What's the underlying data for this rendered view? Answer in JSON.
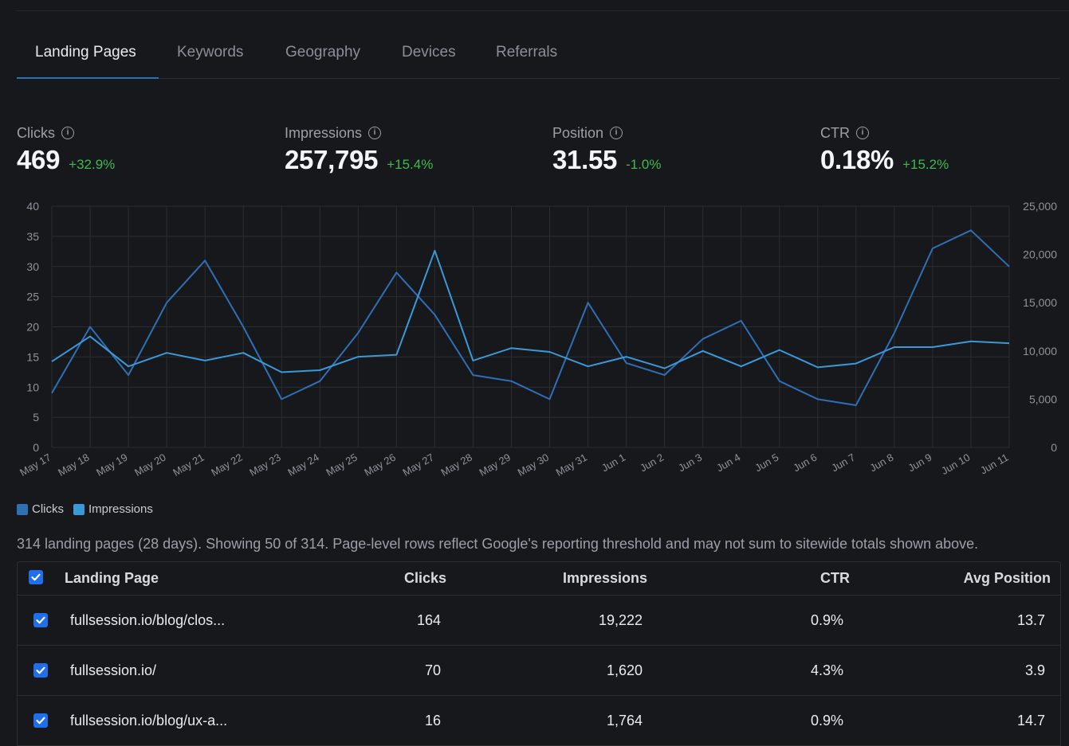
{
  "tabs": [
    {
      "label": "Landing Pages",
      "active": true
    },
    {
      "label": "Keywords",
      "active": false
    },
    {
      "label": "Geography",
      "active": false
    },
    {
      "label": "Devices",
      "active": false
    },
    {
      "label": "Referrals",
      "active": false
    }
  ],
  "metrics": [
    {
      "label": "Clicks",
      "value": "469",
      "delta": "+32.9%"
    },
    {
      "label": "Impressions",
      "value": "257,795",
      "delta": "+15.4%"
    },
    {
      "label": "Position",
      "value": "31.55",
      "delta": "-1.0%"
    },
    {
      "label": "CTR",
      "value": "0.18%",
      "delta": "+15.2%"
    }
  ],
  "colors": {
    "positive": "#3fb950",
    "clicks": "#2f6fb6",
    "impressions": "#3a99d8",
    "accent": "#1f6feb"
  },
  "chart_data": {
    "type": "line",
    "x": [
      "May 17",
      "May 18",
      "May 19",
      "May 20",
      "May 21",
      "May 22",
      "May 23",
      "May 24",
      "May 25",
      "May 26",
      "May 27",
      "May 28",
      "May 29",
      "May 30",
      "May 31",
      "Jun 1",
      "Jun 2",
      "Jun 3",
      "Jun 4",
      "Jun 5",
      "Jun 6",
      "Jun 7",
      "Jun 8",
      "Jun 9",
      "Jun 10",
      "Jun 11"
    ],
    "series": [
      {
        "name": "Clicks",
        "axis": "left",
        "color": "#2f6fb6",
        "values": [
          9,
          20,
          12,
          24,
          31,
          20,
          8,
          11,
          19,
          29,
          22,
          12,
          11,
          8,
          24,
          14,
          12,
          18,
          21,
          11,
          8,
          7,
          19,
          33,
          36,
          30
        ]
      },
      {
        "name": "Impressions",
        "axis": "right",
        "color": "#3a99d8",
        "values": [
          8900,
          11500,
          8400,
          9800,
          9000,
          9800,
          7800,
          8000,
          9400,
          9600,
          20400,
          9000,
          10300,
          9900,
          8400,
          9400,
          8200,
          10000,
          8400,
          10100,
          8300,
          8700,
          10400,
          10400,
          11000,
          10800
        ]
      }
    ],
    "y_left": {
      "min": 0,
      "max": 40,
      "ticks": [
        0,
        5,
        10,
        15,
        20,
        25,
        30,
        35,
        40
      ]
    },
    "y_right": {
      "min": 0,
      "max": 25000,
      "ticks": [
        "0",
        "5,000",
        "10,000",
        "15,000",
        "20,000",
        "25,000"
      ]
    },
    "grid": true,
    "legend": "bottom-left"
  },
  "summary": "314 landing pages (28 days). Showing 50 of 314. Page-level rows reflect Google's reporting threshold and may not sum to sitewide totals shown above.",
  "table": {
    "headers": {
      "page": "Landing Page",
      "clicks": "Clicks",
      "impressions": "Impressions",
      "ctr": "CTR",
      "position": "Avg Position"
    },
    "header_checked": true,
    "rows": [
      {
        "checked": true,
        "page": "fullsession.io/blog/clos...",
        "clicks": "164",
        "impressions": "19,222",
        "ctr": "0.9%",
        "position": "13.7"
      },
      {
        "checked": true,
        "page": "fullsession.io/",
        "clicks": "70",
        "impressions": "1,620",
        "ctr": "4.3%",
        "position": "3.9"
      },
      {
        "checked": true,
        "page": "fullsession.io/blog/ux-a...",
        "clicks": "16",
        "impressions": "1,764",
        "ctr": "0.9%",
        "position": "14.7"
      }
    ]
  }
}
